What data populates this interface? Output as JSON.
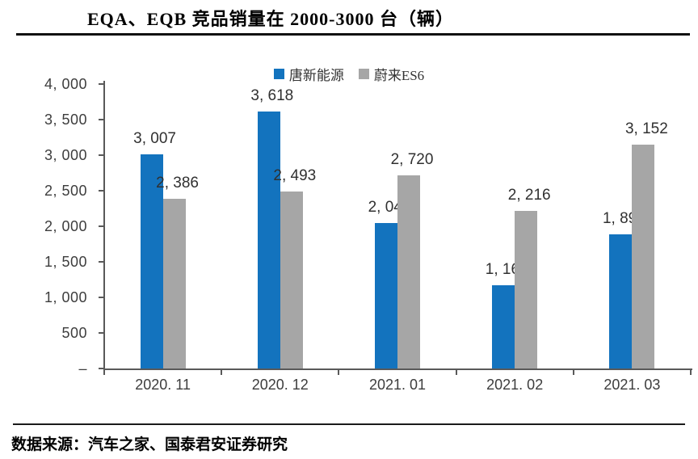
{
  "title": "EQA、EQB 竞品销量在 2000-3000 台（辆）",
  "footer": {
    "source": "数据来源：汽车之家、国泰君安证券研究"
  },
  "colors": {
    "series1": "#1373BE",
    "series2": "#A6A6A6",
    "axis": "#595959",
    "label_text": "#303030"
  },
  "chart_data": {
    "type": "bar",
    "title": "EQA、EQB 竞品销量在 2000-3000 台（辆）",
    "categories": [
      "2020. 11",
      "2020. 12",
      "2021. 01",
      "2021. 02",
      "2021. 03"
    ],
    "series": [
      {
        "name": "唐新能源",
        "color": "#1373BE",
        "values": [
          3007,
          3618,
          2049,
          1169,
          1891
        ],
        "labels": [
          "3, 007",
          "3, 618",
          "2, 049",
          "1, 169",
          "1, 891"
        ]
      },
      {
        "name": "蔚来ES6",
        "color": "#A6A6A6",
        "values": [
          2386,
          2493,
          2720,
          2216,
          3152
        ],
        "labels": [
          "2, 386",
          "2, 493",
          "2, 720",
          "2, 216",
          "3, 152"
        ]
      }
    ],
    "ylim": [
      0,
      4000
    ],
    "ytick_step": 500,
    "ytick_labels": [
      "–",
      "500",
      "1, 000",
      "1, 500",
      "2, 000",
      "2, 500",
      "3, 000",
      "3, 500",
      "4, 000"
    ],
    "grid": false,
    "legend_position": "top-center",
    "xlabel": "",
    "ylabel": ""
  }
}
